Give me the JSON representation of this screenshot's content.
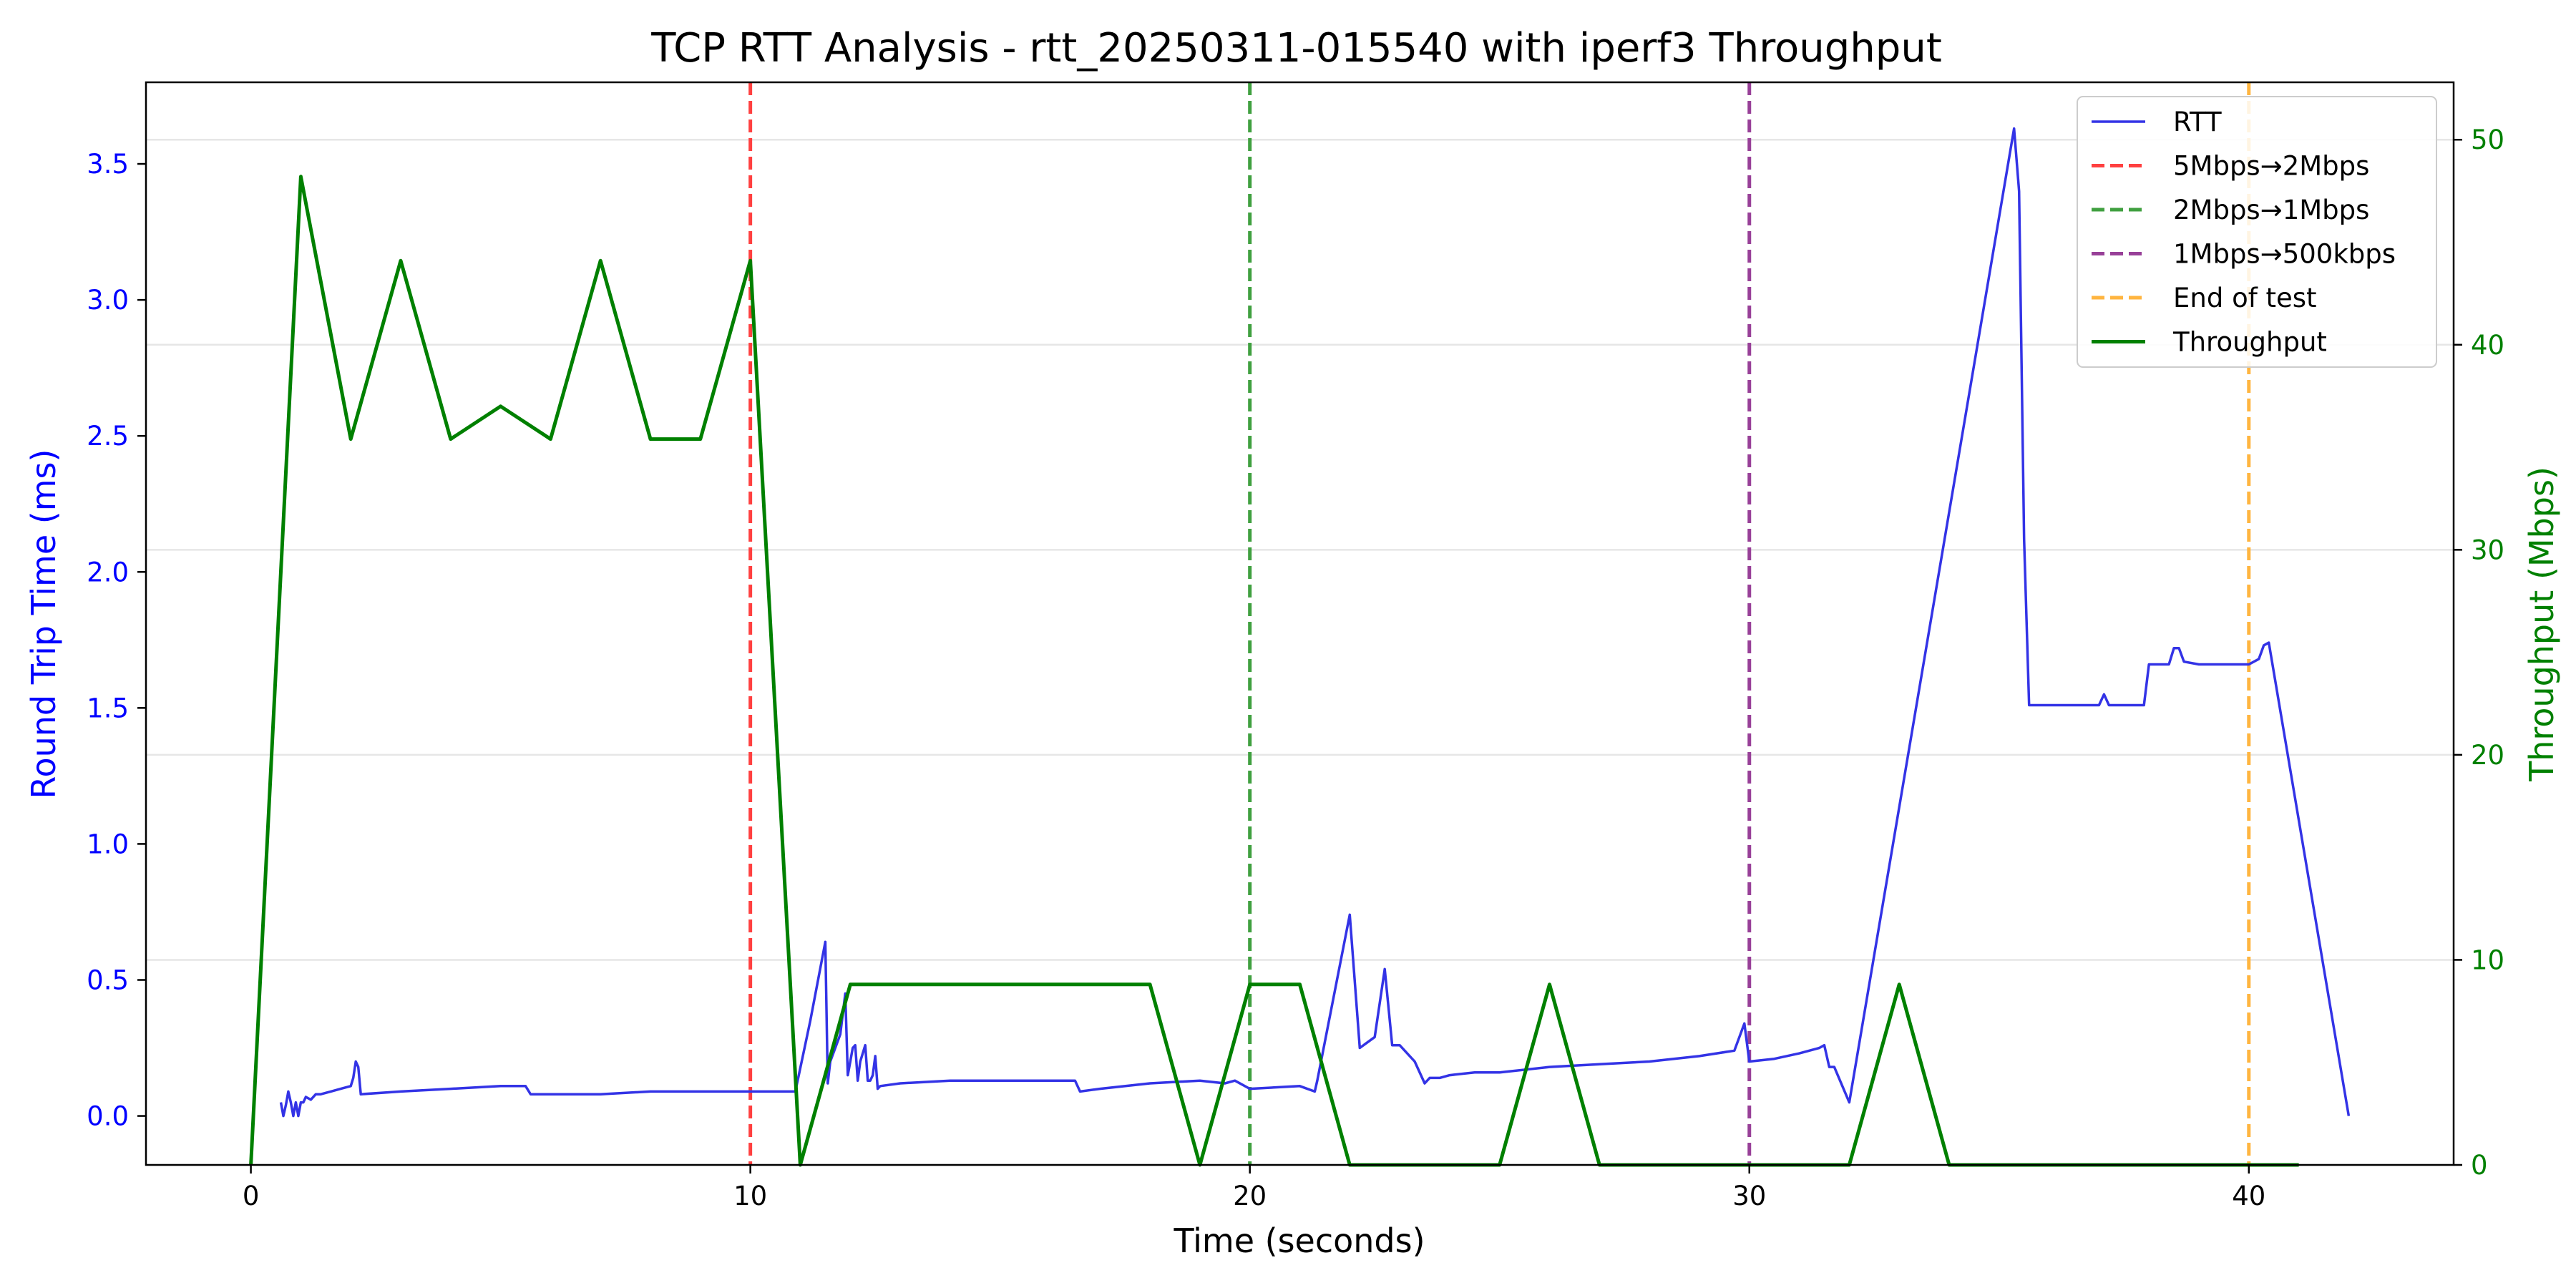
{
  "chart_data": {
    "type": "line",
    "title": "TCP RTT Analysis - rtt_20250311-015540 with iperf3 Throughput",
    "xlabel": "Time (seconds)",
    "ylabel_left": "Round Trip Time (ms)",
    "ylabel_right": "Throughput (Mbps)",
    "xlim": [
      -2.1,
      44.1
    ],
    "ylim_left": [
      -0.18,
      3.8
    ],
    "ylim_right": [
      0,
      52.8
    ],
    "x_ticks": [
      0,
      10,
      20,
      30,
      40
    ],
    "y_ticks_left": [
      0.0,
      0.5,
      1.0,
      1.5,
      2.0,
      2.5,
      3.0,
      3.5
    ],
    "y_ticks_left_labels": [
      "0.0",
      "0.5",
      "1.0",
      "1.5",
      "2.0",
      "2.5",
      "3.0",
      "3.5"
    ],
    "y_ticks_right": [
      0,
      10,
      20,
      30,
      40,
      50
    ],
    "grid": "horizontal, right axis",
    "legend_position": "top-right",
    "colors": {
      "rtt": "#3333e6",
      "throughput": "#008000",
      "left_axis": "#0000ff",
      "right_axis": "#008000"
    },
    "series": [
      {
        "name": "RTT",
        "axis": "left",
        "x": [
          0.6,
          0.65,
          0.7,
          0.75,
          0.8,
          0.85,
          0.9,
          0.95,
          1.0,
          1.05,
          1.1,
          1.2,
          1.3,
          1.4,
          1.6,
          1.8,
          2.0,
          2.05,
          2.1,
          2.15,
          2.2,
          3.0,
          4.0,
          5.0,
          5.5,
          5.6,
          6.0,
          7.0,
          8.0,
          9.0,
          10.0,
          10.9,
          11.2,
          11.5,
          11.55,
          11.6,
          11.7,
          11.8,
          11.9,
          11.95,
          12.0,
          12.05,
          12.1,
          12.15,
          12.2,
          12.3,
          12.35,
          12.4,
          12.45,
          12.5,
          12.55,
          12.6,
          13.0,
          14.0,
          15.0,
          16.5,
          16.6,
          17.0,
          18.0,
          19.0,
          19.5,
          19.7,
          20.0,
          21.0,
          21.3,
          21.35,
          22.0,
          22.2,
          22.5,
          22.7,
          22.85,
          23.0,
          23.3,
          23.5,
          23.6,
          23.8,
          24.0,
          24.5,
          25.0,
          26.0,
          27.0,
          28.0,
          29.0,
          29.7,
          29.9,
          30.0,
          30.5,
          31.0,
          31.4,
          31.5,
          31.6,
          31.7,
          32.0,
          35.3,
          35.4,
          35.5,
          35.6,
          35.8,
          37.0,
          37.1,
          37.2,
          37.5,
          37.9,
          38.0,
          38.4,
          38.5,
          38.6,
          38.7,
          39.0,
          40.0,
          40.2,
          40.3,
          40.4,
          42.0
        ],
        "values": [
          0.05,
          0.0,
          0.04,
          0.09,
          0.05,
          0.0,
          0.05,
          0.0,
          0.05,
          0.05,
          0.07,
          0.06,
          0.08,
          0.08,
          0.09,
          0.1,
          0.11,
          0.14,
          0.2,
          0.18,
          0.08,
          0.09,
          0.1,
          0.11,
          0.11,
          0.08,
          0.08,
          0.08,
          0.09,
          0.09,
          0.09,
          0.09,
          0.35,
          0.64,
          0.12,
          0.2,
          0.25,
          0.3,
          0.45,
          0.15,
          0.2,
          0.25,
          0.26,
          0.13,
          0.2,
          0.26,
          0.13,
          0.13,
          0.15,
          0.22,
          0.1,
          0.11,
          0.12,
          0.13,
          0.13,
          0.13,
          0.09,
          0.1,
          0.12,
          0.13,
          0.12,
          0.13,
          0.1,
          0.11,
          0.09,
          0.13,
          0.74,
          0.25,
          0.29,
          0.54,
          0.26,
          0.26,
          0.2,
          0.12,
          0.14,
          0.14,
          0.15,
          0.16,
          0.16,
          0.18,
          0.19,
          0.2,
          0.22,
          0.24,
          0.34,
          0.2,
          0.21,
          0.23,
          0.25,
          0.26,
          0.18,
          0.18,
          0.05,
          3.63,
          3.4,
          2.12,
          1.51,
          1.51,
          1.51,
          1.55,
          1.51,
          1.51,
          1.51,
          1.66,
          1.66,
          1.72,
          1.72,
          1.67,
          1.66,
          1.66,
          1.68,
          1.73,
          1.74,
          0.0
        ]
      },
      {
        "name": "Throughput",
        "axis": "right",
        "x": [
          0,
          1,
          2,
          3,
          4,
          5,
          6,
          7,
          8,
          9,
          10,
          11,
          12,
          13,
          14,
          15,
          16,
          17,
          18,
          19,
          20,
          21,
          22,
          23,
          24,
          25,
          26,
          27,
          28,
          29,
          30,
          31,
          32,
          33,
          34,
          35,
          36,
          37,
          38,
          39,
          40,
          41
        ],
        "values": [
          0,
          48.2,
          35.4,
          44.1,
          35.4,
          37.0,
          35.4,
          44.1,
          35.4,
          35.4,
          44.1,
          0,
          8.8,
          8.8,
          8.8,
          8.8,
          8.8,
          8.8,
          8.8,
          0,
          8.8,
          8.8,
          0,
          0,
          0,
          0,
          8.8,
          0,
          0,
          0,
          0,
          0,
          0,
          8.8,
          0,
          0,
          0,
          0,
          0,
          0,
          0,
          0
        ]
      }
    ],
    "vlines": [
      {
        "name": "5Mbps→2Mbps",
        "x": 10,
        "color": "#ff4040"
      },
      {
        "name": "2Mbps→1Mbps",
        "x": 20,
        "color": "#40a040"
      },
      {
        "name": "1Mbps→500kbps",
        "x": 30,
        "color": "#984098"
      },
      {
        "name": "End of test",
        "x": 40,
        "color": "#ffb540"
      }
    ],
    "legend": [
      {
        "label": "RTT",
        "style": "solid",
        "color": "#3333e6"
      },
      {
        "label": "5Mbps→2Mbps",
        "style": "dashed",
        "color": "#ff4040"
      },
      {
        "label": "2Mbps→1Mbps",
        "style": "dashed",
        "color": "#40a040"
      },
      {
        "label": "1Mbps→500kbps",
        "style": "dashed",
        "color": "#984098"
      },
      {
        "label": "End of test",
        "style": "dashed",
        "color": "#ffb540"
      },
      {
        "label": "Throughput",
        "style": "solid",
        "color": "#008000"
      }
    ]
  }
}
